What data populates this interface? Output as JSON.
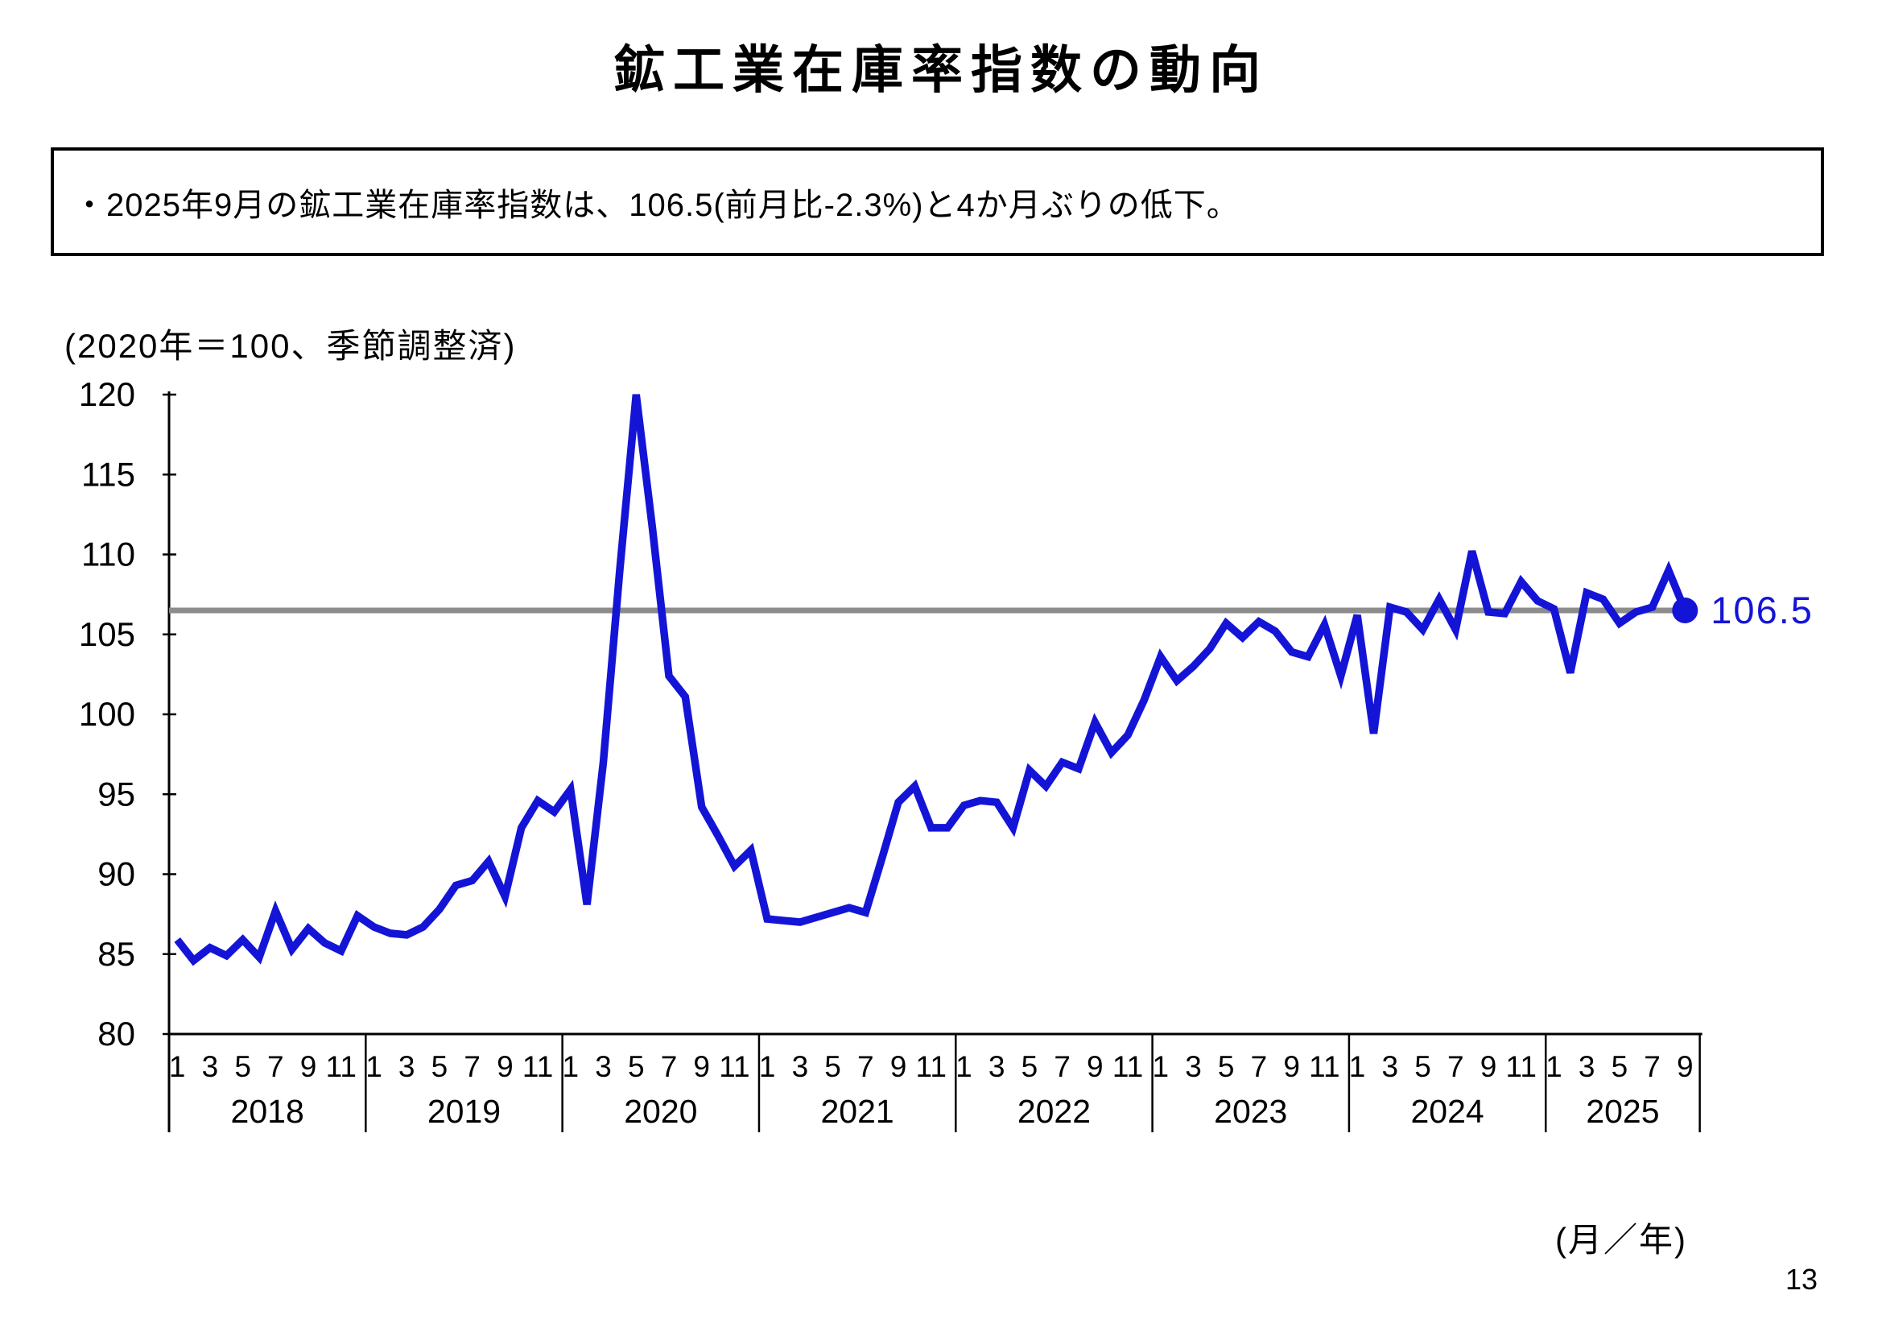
{
  "page": {
    "title": "鉱工業在庫率指数の動向",
    "page_number": "13"
  },
  "annotation": {
    "text": "・2025年9月の鉱工業在庫率指数は、106.5(前月比-2.3%)と4か月ぶりの低下。"
  },
  "chart": {
    "unit_note": "(2020年＝100、季節調整済)",
    "xaxis_unit": "(月／年)"
  },
  "chart_data": {
    "type": "line",
    "title": "鉱工業在庫率指数の動向",
    "unit_note": "(2020年＝100、季節調整済)",
    "xlabel": "(月／年)",
    "ylabel": "",
    "ylim": [
      80,
      120
    ],
    "y_ticks": [
      80,
      85,
      90,
      95,
      100,
      105,
      110,
      115,
      120
    ],
    "grid": false,
    "reference_line_value": 106.5,
    "last_point_label": "106.5",
    "last_point_value": 106.5,
    "series_color": "#1414d7",
    "reference_line_color": "#8c8c8c",
    "axis_color": "#000000",
    "month_tick_step_note": "odd months labeled 1 3 5 7 9 11",
    "years": [
      {
        "label": "2018",
        "values": [
          85.9,
          84.6,
          85.4,
          84.9,
          85.9,
          84.8,
          87.7,
          85.3,
          86.6,
          85.7,
          85.2,
          87.4
        ]
      },
      {
        "label": "2019",
        "values": [
          86.7,
          86.3,
          86.2,
          86.7,
          87.8,
          89.3,
          89.6,
          90.8,
          88.6,
          92.9,
          94.6,
          93.9
        ]
      },
      {
        "label": "2020",
        "values": [
          95.3,
          88.1,
          97.0,
          109.0,
          120.0,
          111.6,
          102.4,
          101.1,
          94.2,
          92.4,
          90.5,
          91.5
        ]
      },
      {
        "label": "2021",
        "values": [
          87.2,
          87.1,
          87.0,
          87.3,
          87.6,
          87.9,
          87.6,
          91.0,
          94.5,
          95.5,
          92.9,
          92.9
        ]
      },
      {
        "label": "2022",
        "values": [
          94.3,
          94.6,
          94.5,
          92.9,
          96.5,
          95.5,
          97.0,
          96.6,
          99.5,
          97.6,
          98.7,
          100.9
        ]
      },
      {
        "label": "2023",
        "values": [
          103.6,
          102.1,
          103.0,
          104.1,
          105.7,
          104.8,
          105.8,
          105.2,
          103.9,
          103.6,
          105.6,
          102.4
        ]
      },
      {
        "label": "2024",
        "values": [
          106.2,
          98.8,
          106.7,
          106.4,
          105.3,
          107.2,
          105.3,
          110.2,
          106.4,
          106.3,
          108.3,
          107.1
        ]
      },
      {
        "label": "2025",
        "values": [
          106.6,
          102.6,
          107.6,
          107.2,
          105.7,
          106.4,
          106.7,
          109.0,
          106.5
        ]
      }
    ]
  }
}
